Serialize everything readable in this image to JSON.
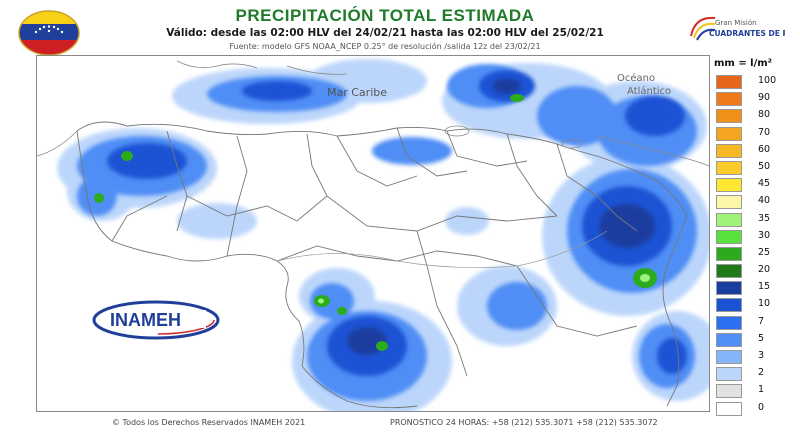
{
  "header": {
    "title": "PRECIPITACIÓN TOTAL ESTIMADA",
    "valid": "Válido: desde las 02:00 HLV del 24/02/21 hasta las 02:00 HLV del 25/02/21",
    "source": "Fuente: modelo GFS NOAA_NCEP 0.25° de resolución /salida 12z del 23/02/21"
  },
  "logos": {
    "inameh": "INAMEH",
    "gdp_line1": "Gran Misión",
    "gdp_line2": "CUADRANTES DE PAZ"
  },
  "map": {
    "sea_label": "Mar Caribe",
    "ocean_label_1": "Océano",
    "ocean_label_2": "Atlántico",
    "colors": {
      "land": "#ffffff",
      "border": "#777777",
      "frame": "#888888"
    }
  },
  "legend": {
    "unit": "mm = l/m²",
    "entries": [
      {
        "label": "100",
        "color": "#e8661a"
      },
      {
        "label": "90",
        "color": "#ef7a19"
      },
      {
        "label": "80",
        "color": "#f19019"
      },
      {
        "label": "70",
        "color": "#f4a420"
      },
      {
        "label": "60",
        "color": "#f7b826"
      },
      {
        "label": "50",
        "color": "#facb2a"
      },
      {
        "label": "45",
        "color": "#fde732"
      },
      {
        "label": "40",
        "color": "#fbf6a8"
      },
      {
        "label": "35",
        "color": "#9ff27a"
      },
      {
        "label": "30",
        "color": "#58e23e"
      },
      {
        "label": "25",
        "color": "#2bab1d"
      },
      {
        "label": "20",
        "color": "#1f7a17"
      },
      {
        "label": "15",
        "color": "#1a3ea0"
      },
      {
        "label": "10",
        "color": "#1a52d4"
      },
      {
        "label": "7",
        "color": "#2c6ff0"
      },
      {
        "label": "5",
        "color": "#4f8ef5"
      },
      {
        "label": "3",
        "color": "#85b4f8"
      },
      {
        "label": "2",
        "color": "#bcd6fb"
      },
      {
        "label": "1",
        "color": "#e2e2e2"
      },
      {
        "label": "0",
        "color": "#ffffff"
      }
    ]
  },
  "footer": {
    "copyright": "© Todos los Derechos Reservados INAMEH 2021",
    "forecast": "PRONOSTICO 24 HORAS: +58 (212) 535.3071 +58 (212) 535.3072"
  }
}
